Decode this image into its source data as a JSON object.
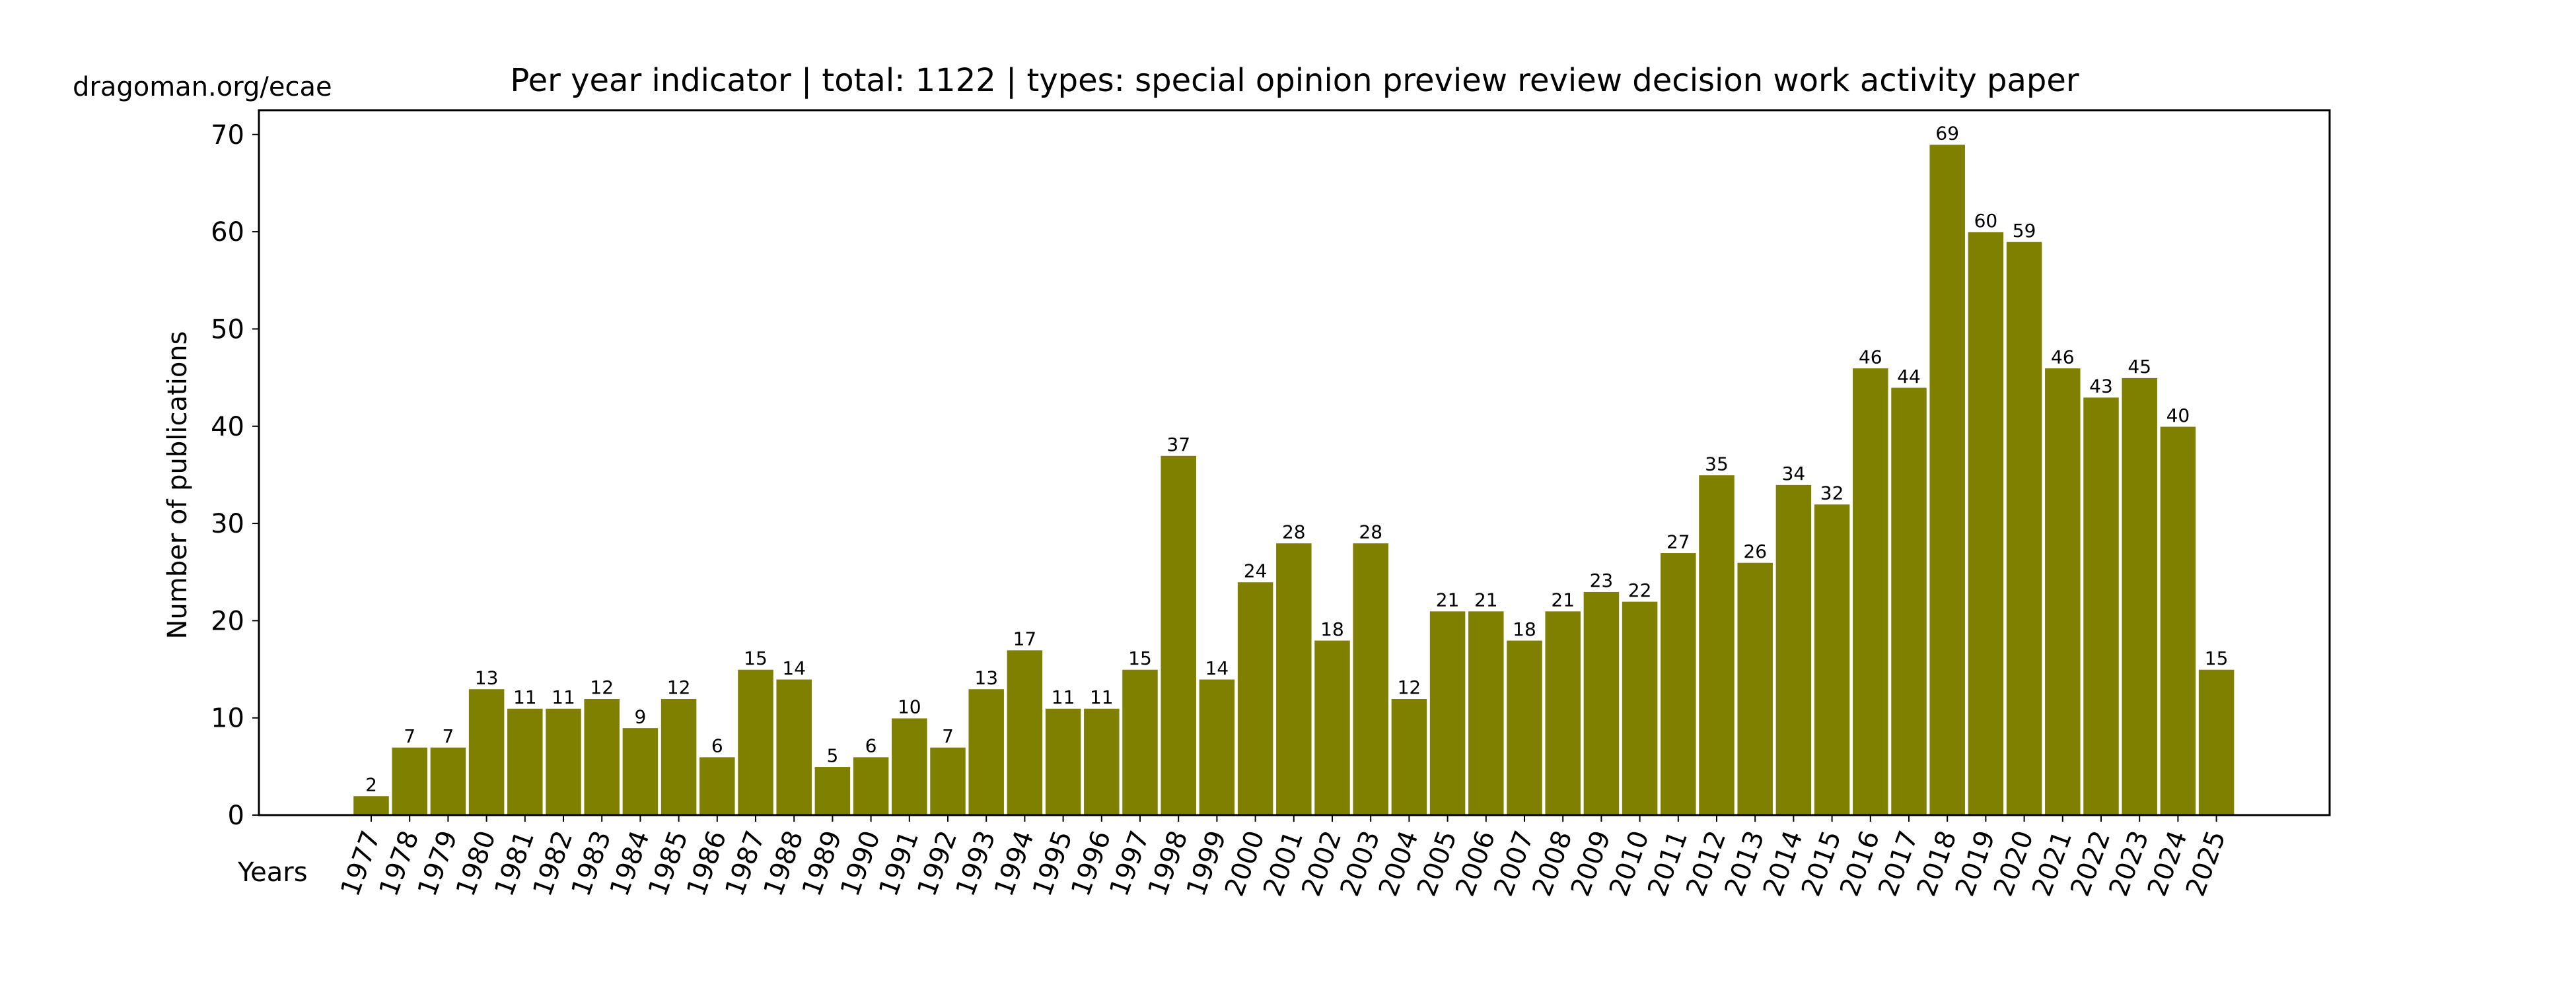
{
  "site_label": "dragoman.org/ecae",
  "chart_data": {
    "type": "bar",
    "title": "Per year indicator | total: 1122 | types: special opinion preview review decision work activity paper",
    "ylabel": "Number of publications",
    "xlabel": "Years",
    "ylim": [
      0,
      72.5
    ],
    "yticks": [
      0,
      10,
      20,
      30,
      40,
      50,
      60,
      70
    ],
    "grid": false,
    "legend": "none",
    "bar_color": "#808000",
    "bar_edge_color": "#ffffff",
    "categories": [
      "1977",
      "1978",
      "1979",
      "1980",
      "1981",
      "1982",
      "1983",
      "1984",
      "1985",
      "1986",
      "1987",
      "1988",
      "1989",
      "1990",
      "1991",
      "1992",
      "1993",
      "1994",
      "1995",
      "1996",
      "1997",
      "1998",
      "1999",
      "2000",
      "2001",
      "2002",
      "2003",
      "2004",
      "2005",
      "2006",
      "2007",
      "2008",
      "2009",
      "2010",
      "2011",
      "2012",
      "2013",
      "2014",
      "2015",
      "2016",
      "2017",
      "2018",
      "2019",
      "2020",
      "2021",
      "2022",
      "2023",
      "2024",
      "2025"
    ],
    "values": [
      2,
      7,
      7,
      13,
      11,
      11,
      12,
      9,
      12,
      6,
      15,
      14,
      5,
      6,
      10,
      7,
      13,
      17,
      11,
      11,
      15,
      37,
      14,
      24,
      28,
      18,
      28,
      12,
      21,
      21,
      18,
      21,
      23,
      22,
      27,
      35,
      26,
      34,
      32,
      46,
      44,
      69,
      60,
      59,
      46,
      43,
      45,
      40,
      15
    ]
  }
}
